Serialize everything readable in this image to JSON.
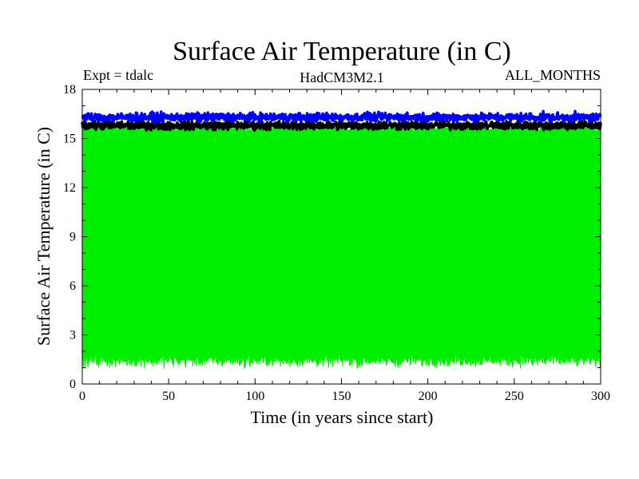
{
  "chart_data": {
    "type": "line",
    "title": "Surface Air Temperature (in C)",
    "subtitle_left": "Expt = tdalc",
    "subtitle_center": "HadCM3M2.1",
    "subtitle_right": "ALL_MONTHS",
    "xlabel": "Time (in years since start)",
    "ylabel": "Surface Air Temperature (in C)",
    "xlim": [
      0,
      300
    ],
    "ylim": [
      0,
      18
    ],
    "xticks": [
      0,
      50,
      100,
      150,
      200,
      250,
      300
    ],
    "yticks": [
      0,
      3,
      6,
      9,
      12,
      15,
      18
    ],
    "grid": false,
    "series": [
      {
        "name": "monthly range (green)",
        "color": "#00ee00",
        "kind": "band",
        "lower_mean": 1.5,
        "lower_spread": 0.45,
        "upper_mean": 15.6,
        "upper_spread": 0.3
      },
      {
        "name": "black series",
        "color": "#000000",
        "kind": "line",
        "mean": 15.8,
        "spread": 0.25
      },
      {
        "name": "blue series",
        "color": "#0000ff",
        "kind": "line",
        "mean": 16.3,
        "spread": 0.25
      }
    ]
  }
}
